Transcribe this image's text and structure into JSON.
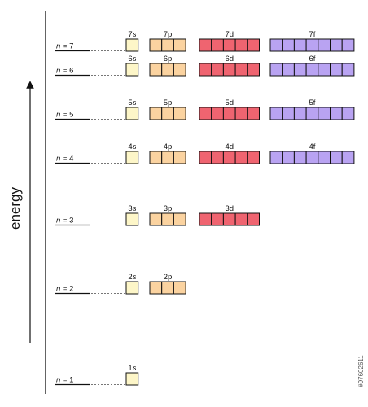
{
  "axis_label": "energy",
  "levels": [
    {
      "n": "7",
      "subshells": [
        {
          "label": "7s",
          "type": "s"
        },
        {
          "label": "7p",
          "type": "p"
        },
        {
          "label": "7d",
          "type": "d"
        },
        {
          "label": "7f",
          "type": "f"
        }
      ]
    },
    {
      "n": "6",
      "subshells": [
        {
          "label": "6s",
          "type": "s"
        },
        {
          "label": "6p",
          "type": "p"
        },
        {
          "label": "6d",
          "type": "d"
        },
        {
          "label": "6f",
          "type": "f"
        }
      ]
    },
    {
      "n": "5",
      "subshells": [
        {
          "label": "5s",
          "type": "s"
        },
        {
          "label": "5p",
          "type": "p"
        },
        {
          "label": "5d",
          "type": "d"
        },
        {
          "label": "5f",
          "type": "f"
        }
      ]
    },
    {
      "n": "4",
      "subshells": [
        {
          "label": "4s",
          "type": "s"
        },
        {
          "label": "4p",
          "type": "p"
        },
        {
          "label": "4d",
          "type": "d"
        },
        {
          "label": "4f",
          "type": "f"
        }
      ]
    },
    {
      "n": "3",
      "subshells": [
        {
          "label": "3s",
          "type": "s"
        },
        {
          "label": "3p",
          "type": "p"
        },
        {
          "label": "3d",
          "type": "d"
        }
      ]
    },
    {
      "n": "2",
      "subshells": [
        {
          "label": "2s",
          "type": "s"
        },
        {
          "label": "2p",
          "type": "p"
        }
      ]
    },
    {
      "n": "1",
      "subshells": [
        {
          "label": "1s",
          "type": "s"
        }
      ]
    }
  ],
  "subshell_styles": {
    "s": {
      "boxes": 1,
      "fill": "#fdf6c8"
    },
    "p": {
      "boxes": 3,
      "fill": "#fbd3a0"
    },
    "d": {
      "boxes": 5,
      "fill": "#ef6470"
    },
    "f": {
      "boxes": 7,
      "fill": "#b9a3f2"
    }
  },
  "stock_id": "#97602611"
}
